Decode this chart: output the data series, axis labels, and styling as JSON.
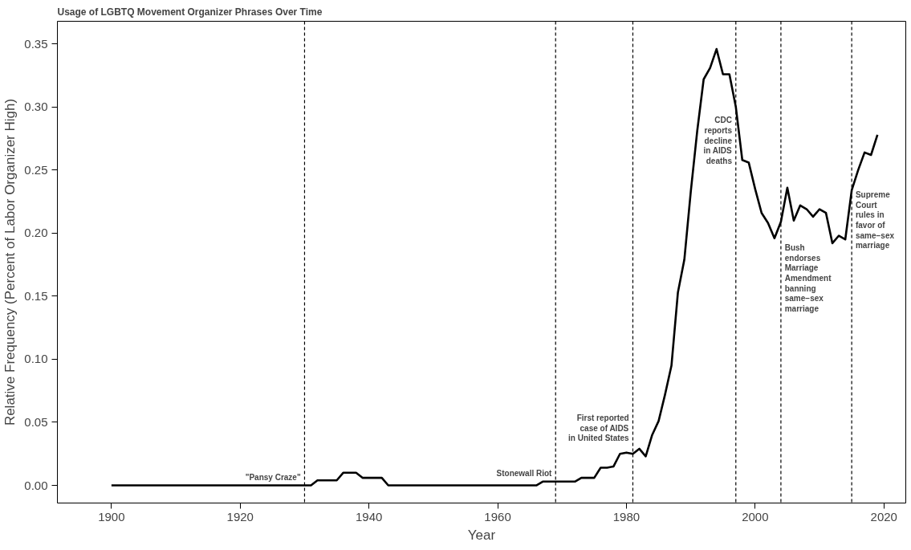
{
  "chart_data": {
    "type": "line",
    "title": "Usage of LGBTQ Movement Organizer Phrases Over Time",
    "xlabel": "Year",
    "ylabel": "Relative Frequency (Percent of Labor Organizer High)",
    "x": [
      1900,
      1901,
      1902,
      1903,
      1904,
      1905,
      1906,
      1907,
      1908,
      1909,
      1910,
      1911,
      1912,
      1913,
      1914,
      1915,
      1916,
      1917,
      1918,
      1919,
      1920,
      1921,
      1922,
      1923,
      1924,
      1925,
      1926,
      1927,
      1928,
      1929,
      1930,
      1931,
      1932,
      1933,
      1934,
      1935,
      1936,
      1937,
      1938,
      1939,
      1940,
      1941,
      1942,
      1943,
      1944,
      1945,
      1946,
      1947,
      1948,
      1949,
      1950,
      1951,
      1952,
      1953,
      1954,
      1955,
      1956,
      1957,
      1958,
      1959,
      1960,
      1961,
      1962,
      1963,
      1964,
      1965,
      1966,
      1967,
      1968,
      1969,
      1970,
      1971,
      1972,
      1973,
      1974,
      1975,
      1976,
      1977,
      1978,
      1979,
      1980,
      1981,
      1982,
      1983,
      1984,
      1985,
      1986,
      1987,
      1988,
      1989,
      1990,
      1991,
      1992,
      1993,
      1994,
      1995,
      1996,
      1997,
      1998,
      1999,
      2000,
      2001,
      2002,
      2003,
      2004,
      2005,
      2006,
      2007,
      2008,
      2009,
      2010,
      2011,
      2012,
      2013,
      2014,
      2015,
      2016,
      2017,
      2018,
      2019
    ],
    "series": [
      {
        "color": "#000000",
        "values": [
          0,
          0,
          0,
          0,
          0,
          0,
          0,
          0,
          0,
          0,
          0,
          0,
          0,
          0,
          0,
          0,
          0,
          0,
          0,
          0,
          0,
          0,
          0,
          0,
          0,
          0,
          0,
          0,
          0,
          0,
          0,
          0,
          0.004,
          0.004,
          0.004,
          0.004,
          0.01,
          0.01,
          0.01,
          0.006,
          0.006,
          0.006,
          0.006,
          0,
          0,
          0,
          0,
          0,
          0,
          0,
          0,
          0,
          0,
          0,
          0,
          0,
          0,
          0,
          0,
          0,
          0,
          0,
          0,
          0,
          0,
          0,
          0,
          0.003,
          0.003,
          0.003,
          0.003,
          0.003,
          0.003,
          0.006,
          0.006,
          0.006,
          0.014,
          0.014,
          0.015,
          0.025,
          0.026,
          0.025,
          0.029,
          0.023,
          0.04,
          0.051,
          0.072,
          0.095,
          0.153,
          0.179,
          0.233,
          0.281,
          0.322,
          0.331,
          0.346,
          0.326,
          0.326,
          0.3,
          0.258,
          0.256,
          0.235,
          0.216,
          0.208,
          0.196,
          0.209,
          0.236,
          0.21,
          0.222,
          0.219,
          0.213,
          0.219,
          0.216,
          0.192,
          0.198,
          0.195,
          0.234,
          0.25,
          0.264,
          0.262,
          0.278
        ]
      }
    ],
    "xlim": [
      1891.6,
      2023.4
    ],
    "ylim": [
      -0.014,
      0.368
    ],
    "xticks": [
      1900,
      1920,
      1940,
      1960,
      1980,
      2000,
      2020
    ],
    "yticks": [
      {
        "value": 0,
        "label": "0.00"
      },
      {
        "value": 0.05,
        "label": "0.05"
      },
      {
        "value": 0.1,
        "label": "0.10"
      },
      {
        "value": 0.15,
        "label": "0.15"
      },
      {
        "value": 0.2,
        "label": "0.20"
      },
      {
        "value": 0.25,
        "label": "0.25"
      },
      {
        "value": 0.3,
        "label": "0.30"
      },
      {
        "value": 0.35,
        "label": "0.35"
      }
    ],
    "ref_lines": [
      {
        "axis": "x",
        "value": 1930,
        "line_style": "dashed",
        "color": "#000000"
      },
      {
        "axis": "x",
        "value": 1969,
        "line_style": "dashed",
        "color": "#000000"
      },
      {
        "axis": "x",
        "value": 1981,
        "line_style": "dashed",
        "color": "#000000"
      },
      {
        "axis": "x",
        "value": 1997,
        "line_style": "dashed",
        "color": "#000000"
      },
      {
        "axis": "x",
        "value": 2004,
        "line_style": "dashed",
        "color": "#000000"
      },
      {
        "axis": "x",
        "value": 2015,
        "line_style": "dashed",
        "color": "#000000"
      }
    ],
    "annotations": [
      {
        "text": "\"Pansy Craze\"",
        "x": 1930,
        "y": 0.01
      },
      {
        "text": "Stonewall Riot",
        "x": 1969,
        "y": 0.013
      },
      {
        "text": "First reported\ncase of AIDS\nin United States",
        "x": 1981,
        "y": 0.057
      },
      {
        "text": "CDC\nreports\ndecline\nin AIDS\ndeaths",
        "x": 1997,
        "y": 0.293
      },
      {
        "text": "Bush\nendorses\nMarriage\nAmendment\nbanning\nsame−sex\nmarriage",
        "x": 2004,
        "y": 0.192
      },
      {
        "text": "Supreme\nCourt\nrules in\nfavor of\nsame−sex\nmarriage",
        "x": 2015,
        "y": 0.234
      }
    ],
    "grid": false,
    "marker": "none",
    "line_style": "solid"
  }
}
